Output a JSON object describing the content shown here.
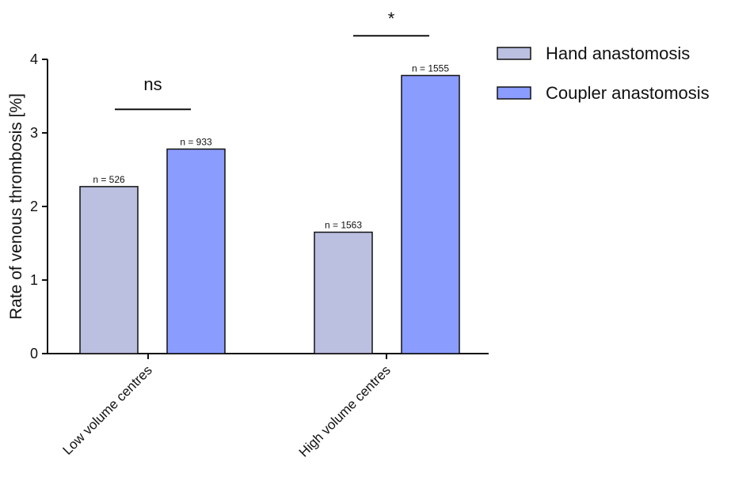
{
  "chart_data": {
    "type": "bar",
    "title": "",
    "xlabel": "",
    "ylabel": "Rate of venous thrombosis [%]",
    "ylim": [
      0,
      4
    ],
    "yticks": [
      0,
      1,
      2,
      3,
      4
    ],
    "grid": false,
    "legend_position": "top-right",
    "categories": [
      "Low volume centres",
      "High volume centres"
    ],
    "series": [
      {
        "name": "Hand anastomosis",
        "color": "#bbbfe0",
        "values": [
          2.27,
          1.65
        ],
        "labels": [
          "n = 526",
          "n = 1563"
        ]
      },
      {
        "name": "Coupler anastomosis",
        "color": "#8b9cff",
        "values": [
          2.78,
          3.78
        ],
        "labels": [
          "n = 933",
          "n = 1555"
        ]
      }
    ],
    "annotations": [
      {
        "category": "Low volume centres",
        "text": "ns",
        "level": 3.32
      },
      {
        "category": "High volume centres",
        "text": "*",
        "level": 4.32
      }
    ]
  }
}
